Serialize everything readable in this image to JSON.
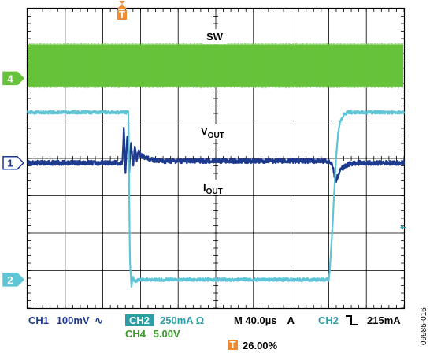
{
  "chart_data": {
    "type": "line",
    "instrument": "oscilloscope",
    "grid": {
      "divisions_x": 10,
      "divisions_y": 8,
      "grid": true
    },
    "trigger_marker": {
      "label": "T",
      "color": "#f08a2e"
    },
    "channels": [
      {
        "id": "4",
        "name": "SW",
        "color": "#66c23a",
        "scale": "5.00V",
        "style": "band",
        "label_html": "SW",
        "ground_marker": "4",
        "ground_div": 1.86,
        "band_top_div": 0.96,
        "band_bottom_div": 2.08,
        "t": [
          0,
          10
        ],
        "v": [
          0,
          0
        ]
      },
      {
        "id": "1",
        "name": "VOUT",
        "label_main": "V",
        "label_sub": "OUT",
        "color": "#1e3a8f",
        "scale": "100mV",
        "coupling": "AC",
        "ground_marker": "1",
        "ground_div": 4.12,
        "noise_div": 0.06,
        "t": [
          0,
          2.52,
          2.56,
          2.6,
          2.65,
          2.7,
          2.75,
          2.8,
          2.85,
          2.9,
          2.95,
          3.0,
          3.1,
          3.3,
          3.6,
          8.0,
          8.1,
          8.15,
          8.2,
          8.28,
          8.35,
          8.42,
          8.5,
          8.6,
          8.75,
          8.9,
          9.2,
          10
        ],
        "v": [
          0,
          0,
          0.95,
          -0.3,
          0.75,
          -0.2,
          0.55,
          -0.1,
          0.4,
          0.1,
          0.3,
          0.2,
          0.15,
          0.08,
          0.05,
          0.05,
          -0.05,
          -0.35,
          -0.45,
          -0.25,
          -0.15,
          -0.1,
          -0.05,
          -0.02,
          0,
          0,
          0,
          0
        ]
      },
      {
        "id": "2",
        "name": "IOUT",
        "label_main": "I",
        "label_sub": "OUT",
        "color": "#5ec4d6",
        "scale": "250mA",
        "coupling": "Ω",
        "ground_marker": "2",
        "ground_div": 7.24,
        "noise_div": 0.04,
        "t": [
          0,
          2.68,
          2.7,
          2.72,
          2.76,
          2.8,
          2.86,
          2.95,
          3.05,
          3.2,
          8.0,
          8.02,
          8.05,
          8.1,
          8.15,
          8.2,
          8.25,
          8.3,
          8.4,
          8.5,
          8.7,
          10
        ],
        "v": [
          4.47,
          4.47,
          2.2,
          0.5,
          -0.2,
          0.05,
          -0.05,
          0.0,
          0.0,
          0.0,
          0.0,
          0.15,
          0.6,
          1.4,
          2.4,
          3.3,
          3.9,
          4.2,
          4.4,
          4.47,
          4.47,
          4.47
        ]
      }
    ],
    "trigger_level_arrow_div": 5.84
  },
  "readout": {
    "ch1_label": "CH1",
    "ch1_scale": "100mV",
    "ch1_coupling": "∿",
    "ch2_label": "CH2",
    "ch2_scale": "250mA Ω",
    "ch4_label": "CH4",
    "ch4_scale": "5.00V",
    "timebase": "M 40.0µs",
    "trig_mode": "A",
    "trig_source": "CH2",
    "trig_slope": "⌐",
    "trig_level": "215mA",
    "trig_pos": "26.00%",
    "trig_pos_icon": "T"
  },
  "figure_id": "09985-016"
}
